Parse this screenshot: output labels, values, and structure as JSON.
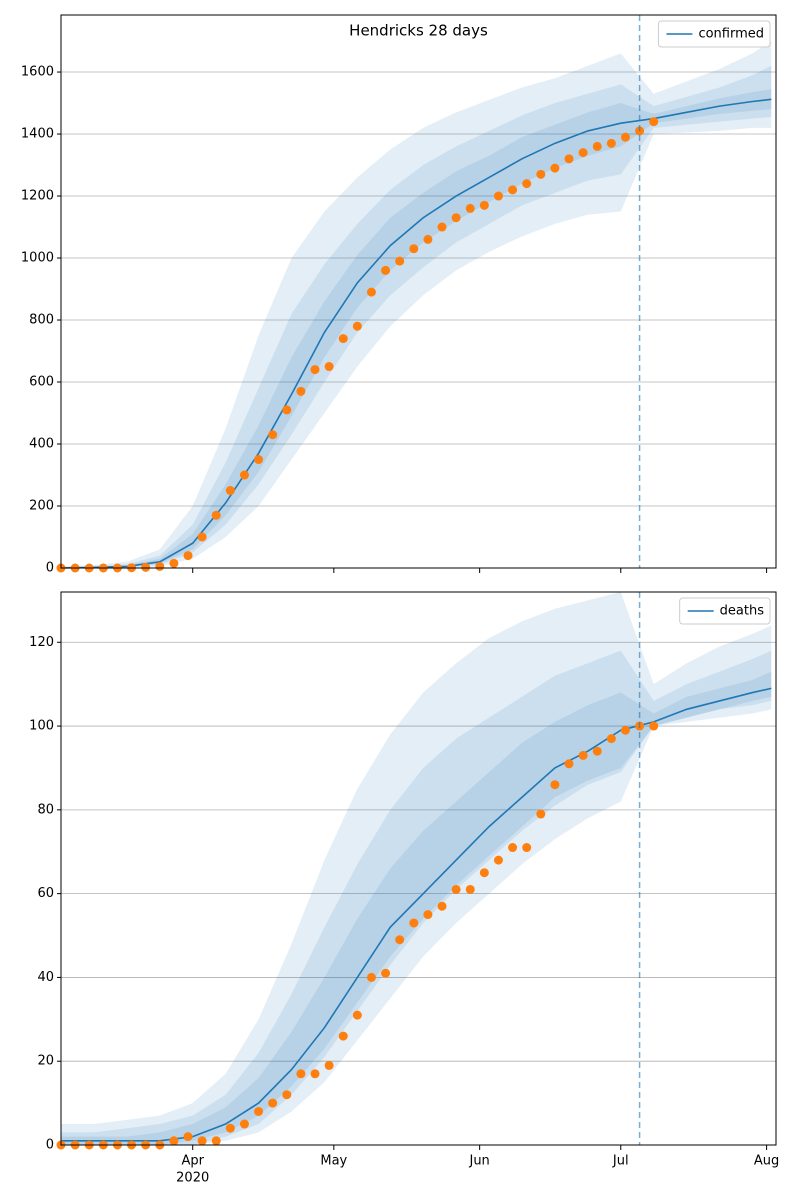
{
  "chart_data": [
    {
      "type": "line",
      "title": "Hendricks 28 days",
      "x": [
        0,
        7,
        14,
        21,
        28,
        35,
        42,
        49,
        56,
        63,
        70,
        77,
        84,
        91,
        98,
        105,
        112,
        119,
        126,
        133,
        140,
        147,
        151
      ],
      "series": [
        {
          "name": "confirmed",
          "color": "#1f77b4",
          "values": [
            0,
            2,
            5,
            20,
            80,
            210,
            370,
            560,
            760,
            920,
            1040,
            1130,
            1200,
            1260,
            1320,
            1370,
            1410,
            1435,
            1450,
            1470,
            1490,
            1505,
            1512
          ]
        }
      ],
      "bands": [
        {
          "upper": [
            5,
            10,
            20,
            60,
            200,
            450,
            750,
            1000,
            1150,
            1260,
            1350,
            1420,
            1470,
            1510,
            1550,
            1580,
            1620,
            1660,
            1530,
            1570,
            1610,
            1660,
            1700
          ],
          "lower": [
            0,
            0,
            0,
            5,
            30,
            100,
            200,
            350,
            500,
            650,
            780,
            880,
            960,
            1020,
            1070,
            1110,
            1140,
            1150,
            1400,
            1405,
            1410,
            1420,
            1420
          ]
        },
        {
          "upper": [
            3,
            6,
            12,
            40,
            140,
            340,
            580,
            820,
            980,
            1110,
            1220,
            1300,
            1360,
            1410,
            1460,
            1500,
            1530,
            1560,
            1490,
            1520,
            1550,
            1590,
            1620
          ],
          "lower": [
            0,
            0,
            2,
            10,
            50,
            140,
            270,
            430,
            600,
            760,
            880,
            970,
            1050,
            1110,
            1170,
            1210,
            1250,
            1270,
            1420,
            1430,
            1440,
            1450,
            1455
          ]
        },
        {
          "upper": [
            2,
            4,
            8,
            30,
            110,
            270,
            460,
            680,
            860,
            1010,
            1130,
            1210,
            1280,
            1330,
            1390,
            1430,
            1470,
            1500,
            1465,
            1490,
            1515,
            1535,
            1545
          ],
          "lower": [
            0,
            1,
            3,
            14,
            60,
            170,
            310,
            490,
            680,
            840,
            960,
            1050,
            1120,
            1180,
            1240,
            1290,
            1330,
            1360,
            1435,
            1450,
            1465,
            1475,
            1480
          ]
        }
      ],
      "band_color": "#1f77b4",
      "points": {
        "color": "#ff7f0e",
        "x": [
          0,
          3,
          6,
          9,
          12,
          15,
          18,
          21,
          24,
          27,
          30,
          33,
          36,
          39,
          42,
          45,
          48,
          51,
          54,
          57,
          60,
          63,
          66,
          69,
          72,
          75,
          78,
          81,
          84,
          87,
          90,
          93,
          96,
          99,
          102,
          105,
          108,
          111,
          114,
          117,
          120,
          123,
          126
        ],
        "values": [
          0,
          0,
          0,
          0,
          0,
          1,
          2,
          5,
          15,
          40,
          100,
          170,
          250,
          300,
          350,
          430,
          510,
          570,
          640,
          650,
          740,
          780,
          890,
          960,
          990,
          1030,
          1060,
          1100,
          1130,
          1160,
          1170,
          1200,
          1220,
          1240,
          1270,
          1290,
          1320,
          1340,
          1360,
          1370,
          1390,
          1410,
          1440
        ]
      },
      "vline": 123,
      "xlim": [
        0,
        152
      ],
      "ylim": [
        0,
        1784
      ],
      "yticks": [
        0,
        200,
        400,
        600,
        800,
        1000,
        1200,
        1400,
        1600
      ],
      "grid": true,
      "legend": "upper right"
    },
    {
      "type": "line",
      "x": [
        0,
        7,
        14,
        21,
        28,
        35,
        42,
        49,
        56,
        63,
        70,
        77,
        84,
        91,
        98,
        105,
        112,
        119,
        126,
        133,
        140,
        147,
        151
      ],
      "series": [
        {
          "name": "deaths",
          "color": "#1f77b4",
          "values": [
            1,
            1,
            1,
            1,
            2,
            5,
            10,
            18,
            28,
            40,
            52,
            60,
            68,
            76,
            83,
            90,
            94,
            99,
            101,
            104,
            106,
            108,
            109
          ]
        }
      ],
      "bands": [
        {
          "upper": [
            5,
            5,
            6,
            7,
            10,
            17,
            30,
            48,
            68,
            85,
            98,
            108,
            115,
            121,
            125,
            128,
            130,
            132,
            110,
            115,
            119,
            122,
            124
          ],
          "lower": [
            0,
            0,
            0,
            0,
            0,
            1,
            3,
            8,
            15,
            25,
            35,
            45,
            53,
            60,
            67,
            73,
            78,
            82,
            100,
            101,
            102,
            103,
            104
          ]
        },
        {
          "upper": [
            3,
            3,
            4,
            5,
            7,
            12,
            22,
            36,
            52,
            67,
            80,
            90,
            97,
            102,
            107,
            112,
            115,
            118,
            106,
            110,
            113,
            116,
            118
          ],
          "lower": [
            0,
            0,
            0,
            0,
            0,
            2,
            5,
            12,
            21,
            32,
            43,
            53,
            61,
            68,
            75,
            81,
            86,
            89,
            100,
            102,
            104,
            105,
            106
          ]
        },
        {
          "upper": [
            2,
            2,
            2,
            3,
            5,
            9,
            16,
            27,
            40,
            54,
            66,
            75,
            82,
            89,
            96,
            101,
            105,
            108,
            103,
            107,
            109,
            111,
            113
          ],
          "lower": [
            0,
            0,
            0,
            0,
            1,
            3,
            7,
            14,
            23,
            34,
            45,
            54,
            62,
            69,
            76,
            83,
            87,
            90,
            100,
            102,
            104,
            106,
            107
          ]
        }
      ],
      "band_color": "#1f77b4",
      "points": {
        "color": "#ff7f0e",
        "x": [
          0,
          3,
          6,
          9,
          12,
          15,
          18,
          21,
          24,
          27,
          30,
          33,
          36,
          39,
          42,
          45,
          48,
          51,
          54,
          57,
          60,
          63,
          66,
          69,
          72,
          75,
          78,
          81,
          84,
          87,
          90,
          93,
          96,
          99,
          102,
          105,
          108,
          111,
          114,
          117,
          120,
          123,
          126
        ],
        "values": [
          0,
          0,
          0,
          0,
          0,
          0,
          0,
          0,
          1,
          2,
          1,
          1,
          4,
          5,
          8,
          10,
          12,
          17,
          17,
          19,
          26,
          31,
          40,
          41,
          49,
          53,
          55,
          57,
          61,
          61,
          65,
          68,
          71,
          71,
          79,
          86,
          91,
          93,
          94,
          97,
          99,
          100,
          100
        ]
      },
      "vline": 123,
      "xlim": [
        0,
        152
      ],
      "ylim": [
        0,
        132
      ],
      "yticks": [
        0,
        20,
        40,
        60,
        80,
        100,
        120
      ],
      "xticks": [
        {
          "value": 28,
          "label": "Apr"
        },
        {
          "value": 58,
          "label": "May"
        },
        {
          "value": 89,
          "label": "Jun"
        },
        {
          "value": 119,
          "label": "Jul"
        },
        {
          "value": 150,
          "label": "Aug"
        }
      ],
      "year_label": "2020",
      "grid": true,
      "legend": "upper right"
    }
  ]
}
